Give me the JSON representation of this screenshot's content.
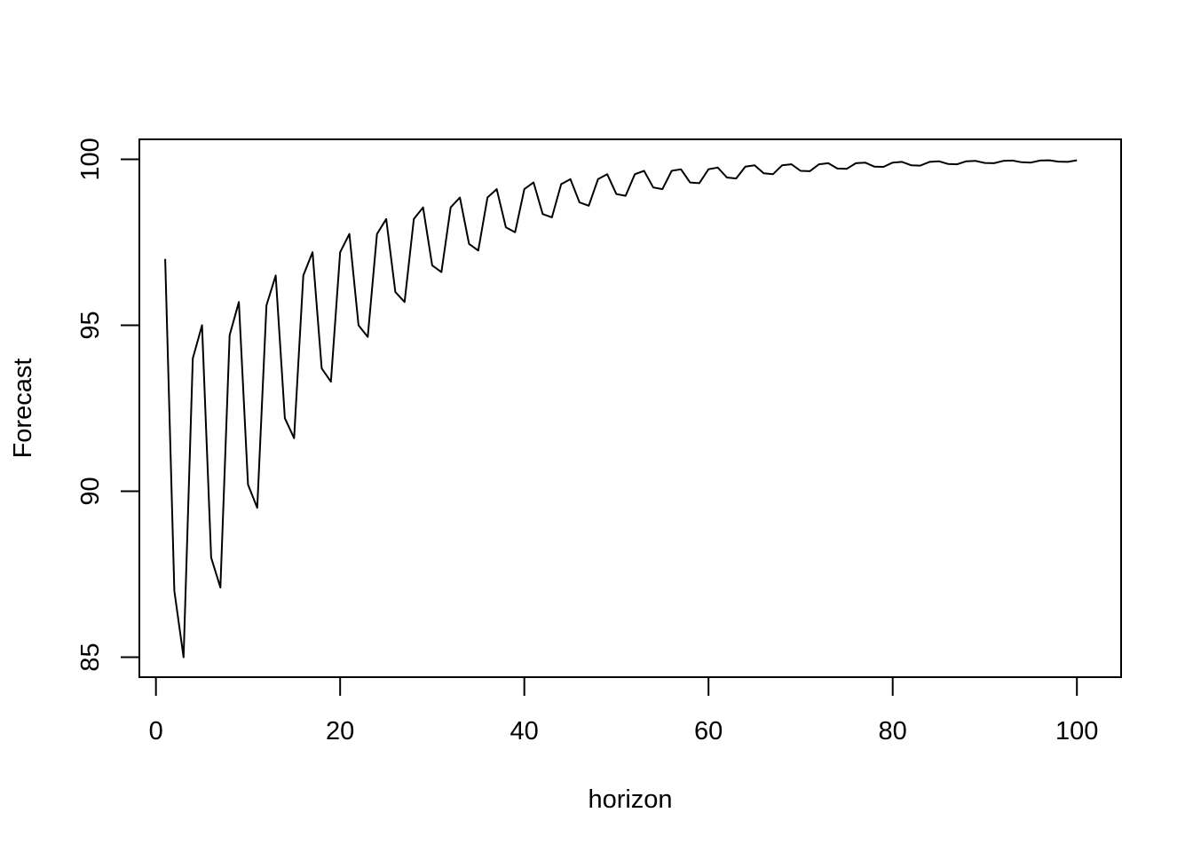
{
  "chart_data": {
    "type": "line",
    "title": "",
    "xlabel": "horizon",
    "ylabel": "Forecast",
    "xlim": [
      -1.8,
      104.8
    ],
    "ylim": [
      84.4,
      100.6
    ],
    "x_ticks": [
      0,
      20,
      40,
      60,
      80,
      100
    ],
    "x_tick_labels": [
      "0",
      "20",
      "40",
      "60",
      "80",
      "100"
    ],
    "y_ticks": [
      85,
      90,
      95,
      100
    ],
    "y_tick_labels": [
      "85",
      "90",
      "95",
      "100"
    ],
    "grid": false,
    "legend": "none",
    "line_color": "#000000",
    "series": [
      {
        "x": [
          1,
          2,
          3,
          4,
          5,
          6,
          7,
          8,
          9,
          10,
          11,
          12,
          13,
          14,
          15,
          16,
          17,
          18,
          19,
          20,
          21,
          22,
          23,
          24,
          25,
          26,
          27,
          28,
          29,
          30,
          31,
          32,
          33,
          34,
          35,
          36,
          37,
          38,
          39,
          40,
          41,
          42,
          43,
          44,
          45,
          46,
          47,
          48,
          49,
          50,
          51,
          52,
          53,
          54,
          55,
          56,
          57,
          58,
          59,
          60,
          61,
          62,
          63,
          64,
          65,
          66,
          67,
          68,
          69,
          70,
          71,
          72,
          73,
          74,
          75,
          76,
          77,
          78,
          79,
          80,
          81,
          82,
          83,
          84,
          85,
          86,
          87,
          88,
          89,
          90,
          91,
          92,
          93,
          94,
          95,
          96,
          97,
          98,
          99,
          100
        ],
        "values": [
          97.0,
          87.0,
          85.0,
          94.0,
          95.0,
          88.0,
          87.1,
          94.7,
          95.7,
          90.2,
          89.5,
          95.6,
          96.5,
          92.2,
          91.6,
          96.5,
          97.2,
          93.7,
          93.3,
          97.2,
          97.75,
          95.0,
          94.65,
          97.75,
          98.2,
          96.0,
          95.7,
          98.2,
          98.55,
          96.8,
          96.6,
          98.55,
          98.85,
          97.45,
          97.25,
          98.85,
          99.1,
          97.95,
          97.8,
          99.1,
          99.3,
          98.35,
          98.25,
          99.25,
          99.4,
          98.7,
          98.6,
          99.4,
          99.55,
          98.95,
          98.9,
          99.55,
          99.65,
          99.15,
          99.1,
          99.65,
          99.7,
          99.3,
          99.28,
          99.7,
          99.75,
          99.45,
          99.42,
          99.78,
          99.82,
          99.58,
          99.55,
          99.82,
          99.85,
          99.65,
          99.64,
          99.85,
          99.88,
          99.72,
          99.71,
          99.88,
          99.9,
          99.78,
          99.77,
          99.9,
          99.92,
          99.82,
          99.81,
          99.92,
          99.94,
          99.86,
          99.85,
          99.94,
          99.95,
          99.89,
          99.88,
          99.95,
          99.96,
          99.91,
          99.9,
          99.96,
          99.97,
          99.93,
          99.92,
          99.97
        ]
      }
    ]
  }
}
